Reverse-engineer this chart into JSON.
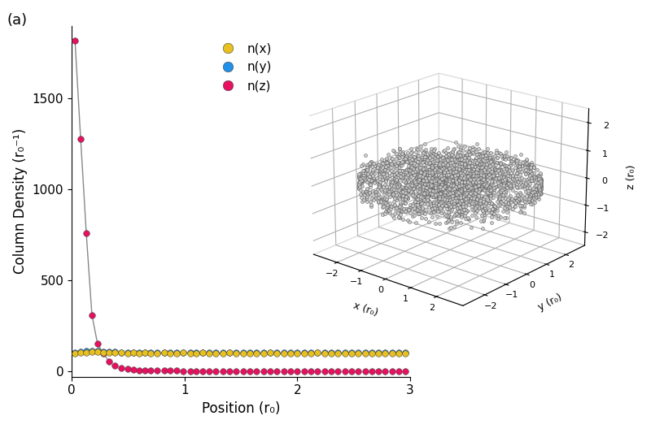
{
  "title_label": "(a)",
  "xlabel": "Position (r₀)",
  "ylabel": "Column Density (r₀⁻¹)",
  "xlim": [
    0,
    3
  ],
  "ylim": [
    -30,
    1900
  ],
  "yticks": [
    0,
    500,
    1000,
    1500
  ],
  "xticks": [
    0,
    1,
    2,
    3
  ],
  "legend_labels": [
    "n(x)",
    "n(y)",
    "n(z)"
  ],
  "color_x": "#E8C020",
  "color_y": "#2090E8",
  "color_z": "#E81060",
  "color_line": "#888888",
  "inset_xlabel": "x (r₀)",
  "inset_ylabel": "y (r₀)",
  "inset_zlabel": "z (r₀)",
  "n_particles": 3000,
  "seed": 42,
  "nz_pts": [
    0.03,
    0.08,
    0.13,
    0.18,
    0.23,
    0.28,
    0.33,
    0.38,
    0.44,
    0.5,
    0.55,
    0.6,
    0.65,
    0.7,
    0.76,
    0.82,
    0.87,
    0.93,
    0.99,
    1.05,
    1.1,
    1.16,
    1.22,
    1.28,
    1.34,
    1.4,
    1.46,
    1.52,
    1.58,
    1.64,
    1.7,
    1.76,
    1.82,
    1.88,
    1.94,
    2.0,
    2.06,
    2.12,
    2.18,
    2.24,
    2.3,
    2.36,
    2.42,
    2.48,
    2.54,
    2.6,
    2.66,
    2.72,
    2.78,
    2.84,
    2.9,
    2.96
  ],
  "nz_vals": [
    1820,
    1280,
    760,
    310,
    150,
    100,
    55,
    30,
    18,
    12,
    8,
    6,
    5,
    4,
    3.5,
    3,
    2.8,
    2.5,
    2.2,
    2.0,
    1.8,
    1.6,
    1.5,
    1.4,
    1.3,
    1.2,
    1.1,
    1.0,
    0.95,
    0.9,
    0.85,
    0.8,
    0.75,
    0.7,
    0.65,
    0.6,
    0.55,
    0.5,
    0.48,
    0.45,
    0.42,
    0.4,
    0.38,
    0.35,
    0.32,
    0.3,
    0.28,
    0.25,
    0.22,
    0.2,
    0.18,
    0.15
  ],
  "nx_pts": [
    0.03,
    0.08,
    0.13,
    0.18,
    0.23,
    0.28,
    0.33,
    0.38,
    0.44,
    0.5,
    0.55,
    0.6,
    0.65,
    0.7,
    0.76,
    0.82,
    0.87,
    0.93,
    0.99,
    1.05,
    1.1,
    1.16,
    1.22,
    1.28,
    1.34,
    1.4,
    1.46,
    1.52,
    1.58,
    1.64,
    1.7,
    1.76,
    1.82,
    1.88,
    1.94,
    2.0,
    2.06,
    2.12,
    2.18,
    2.24,
    2.3,
    2.36,
    2.42,
    2.48,
    2.54,
    2.6,
    2.66,
    2.72,
    2.78,
    2.84,
    2.9,
    2.96
  ],
  "nx_vals": [
    100,
    102,
    105,
    108,
    107,
    104,
    103,
    102,
    101,
    100,
    101,
    99,
    101,
    100,
    100,
    102,
    100,
    99,
    101,
    100,
    100,
    101,
    99,
    100,
    100,
    101,
    100,
    99,
    100,
    100,
    99,
    101,
    100,
    99,
    100,
    100,
    99,
    100,
    101,
    100,
    99,
    100,
    100,
    99,
    100,
    100,
    99,
    100,
    99,
    100,
    99,
    100
  ],
  "ny_pts": [
    0.03,
    0.08,
    0.13,
    0.18,
    0.23,
    0.28,
    0.33,
    0.38,
    0.44,
    0.5,
    0.55,
    0.6,
    0.65,
    0.7,
    0.76,
    0.82,
    0.87,
    0.93,
    0.99,
    1.05,
    1.1,
    1.16,
    1.22,
    1.28,
    1.34,
    1.4,
    1.46,
    1.52,
    1.58,
    1.64,
    1.7,
    1.76,
    1.82,
    1.88,
    1.94,
    2.0,
    2.06,
    2.12,
    2.18,
    2.24,
    2.3,
    2.36,
    2.42,
    2.48,
    2.54,
    2.6,
    2.66,
    2.72,
    2.78,
    2.84,
    2.9,
    2.96
  ],
  "ny_vals": [
    105,
    108,
    110,
    112,
    110,
    108,
    107,
    106,
    105,
    105,
    104,
    105,
    104,
    105,
    105,
    104,
    105,
    104,
    105,
    104,
    105,
    104,
    105,
    104,
    105,
    104,
    105,
    104,
    104,
    105,
    104,
    105,
    104,
    105,
    104,
    104,
    105,
    104,
    104,
    105,
    104,
    104,
    104,
    104,
    104,
    104,
    104,
    104,
    104,
    104,
    104,
    104
  ]
}
